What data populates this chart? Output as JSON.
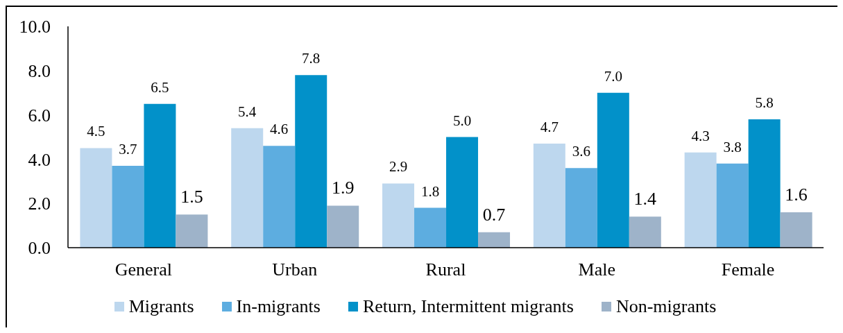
{
  "chart_data": {
    "type": "bar",
    "categories": [
      "General",
      "Urban",
      "Rural",
      "Male",
      "Female"
    ],
    "series": [
      {
        "name": "Migrants",
        "color": "#bdd7ee",
        "values": [
          4.5,
          5.4,
          2.9,
          4.7,
          4.3
        ],
        "value_labels": [
          "4.5",
          "5.4",
          "2.9",
          "4.7",
          "4.3"
        ]
      },
      {
        "name": "In-migrants",
        "color": "#5dade0",
        "values": [
          3.7,
          4.6,
          1.8,
          3.6,
          3.8
        ],
        "value_labels": [
          "3.7",
          "4.6",
          "1.8",
          "3.6",
          "3.8"
        ]
      },
      {
        "name": "Return, Intermittent migrants",
        "color": "#0291c9",
        "values": [
          6.5,
          7.8,
          5.0,
          7.0,
          5.8
        ],
        "value_labels": [
          "6.5",
          "7.8",
          "5.0",
          "7.0",
          "5.8"
        ]
      },
      {
        "name": "Non-migrants",
        "color": "#9eb3c9",
        "values": [
          1.5,
          1.9,
          0.7,
          1.4,
          1.6
        ],
        "value_labels": [
          "1.5",
          "1.9",
          "0.7",
          "1.4",
          "1.6"
        ]
      }
    ],
    "ylim": [
      0,
      10
    ],
    "yticks": [
      {
        "value": 0,
        "label": "0.0"
      },
      {
        "value": 2,
        "label": "2.0"
      },
      {
        "value": 4,
        "label": "4.0"
      },
      {
        "value": 6,
        "label": "6.0"
      },
      {
        "value": 8,
        "label": "8.0"
      },
      {
        "value": 10,
        "label": "10.0"
      }
    ],
    "grid": false,
    "legend": "bottom"
  }
}
